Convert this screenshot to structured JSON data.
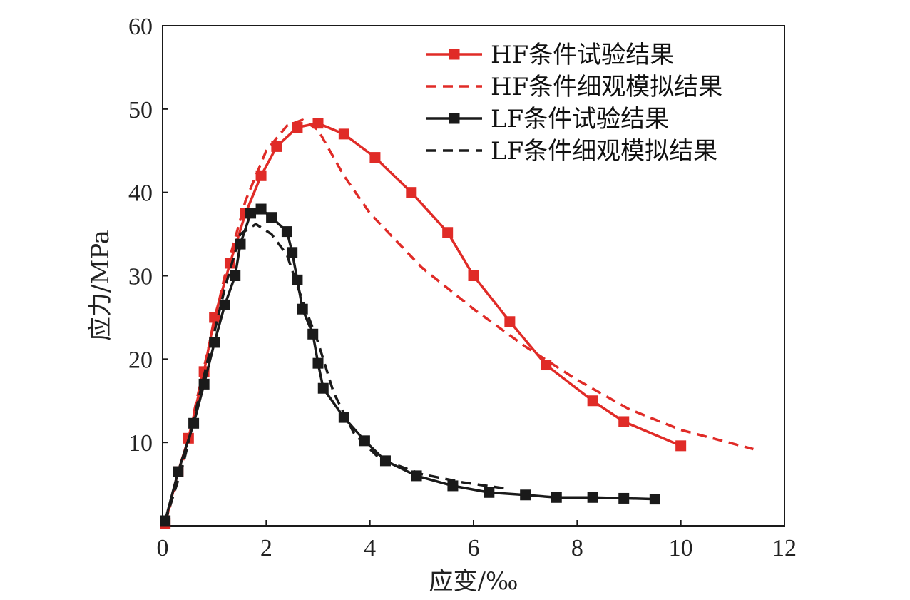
{
  "chart_data": {
    "type": "line",
    "xlabel": "应变/‰",
    "ylabel": "应力/MPa",
    "xlim": [
      0,
      12
    ],
    "ylim": [
      0,
      60
    ],
    "xticks": [
      0,
      2,
      4,
      6,
      8,
      10,
      12
    ],
    "yticks": [
      10,
      20,
      30,
      40,
      50,
      60
    ],
    "grid": false,
    "legend_position": "top-right",
    "series": [
      {
        "name": "HF条件试验结果",
        "color": "#e02b27",
        "style": "solid-square",
        "x": [
          0.05,
          0.3,
          0.5,
          0.8,
          1.0,
          1.3,
          1.6,
          1.9,
          2.2,
          2.6,
          3.0,
          3.5,
          4.1,
          4.8,
          5.5,
          6.0,
          6.7,
          7.4,
          8.3,
          8.9,
          10.0
        ],
        "y": [
          0.3,
          6.5,
          10.5,
          18.5,
          25.0,
          31.5,
          37.5,
          42.0,
          45.5,
          47.8,
          48.3,
          47.0,
          44.2,
          40.0,
          35.2,
          30.0,
          24.5,
          19.3,
          15.0,
          12.5,
          9.6
        ]
      },
      {
        "name": "HF条件细观模拟结果",
        "color": "#e02b27",
        "style": "dashed",
        "x": [
          0.05,
          0.4,
          0.8,
          1.2,
          1.6,
          2.0,
          2.4,
          2.7,
          3.0,
          3.5,
          4.0,
          5.0,
          6.0,
          7.0,
          8.0,
          9.0,
          10.0,
          11.4
        ],
        "y": [
          0.3,
          8.0,
          19.0,
          30.0,
          39.0,
          45.0,
          48.0,
          48.7,
          47.5,
          42.0,
          37.5,
          31.0,
          26.0,
          21.5,
          17.5,
          14.0,
          11.5,
          9.2
        ]
      },
      {
        "name": "LF条件试验结果",
        "color": "#1a1a1a",
        "style": "solid-square",
        "x": [
          0.05,
          0.3,
          0.6,
          0.8,
          1.0,
          1.2,
          1.4,
          1.5,
          1.7,
          1.9,
          2.1,
          2.4,
          2.5,
          2.6,
          2.7,
          2.9,
          3.0,
          3.1,
          3.5,
          3.9,
          4.3,
          4.9,
          5.6,
          6.3,
          7.0,
          7.6,
          8.3,
          8.9,
          9.5
        ],
        "y": [
          0.6,
          6.5,
          12.3,
          17.0,
          22.0,
          26.5,
          30.0,
          33.8,
          37.5,
          38.0,
          37.0,
          35.3,
          32.8,
          29.5,
          26.0,
          23.0,
          19.5,
          16.5,
          13.0,
          10.2,
          7.8,
          6.0,
          4.8,
          4.0,
          3.7,
          3.4,
          3.4,
          3.3,
          3.2
        ]
      },
      {
        "name": "LF条件细观模拟结果",
        "color": "#1a1a1a",
        "style": "dashed",
        "x": [
          0.05,
          0.4,
          0.8,
          1.2,
          1.5,
          1.8,
          2.1,
          2.4,
          2.7,
          3.0,
          3.3,
          3.7,
          4.2,
          5.0,
          5.8,
          6.7
        ],
        "y": [
          0.5,
          7.5,
          18.0,
          28.5,
          35.0,
          36.2,
          35.0,
          32.5,
          27.0,
          22.0,
          16.0,
          11.0,
          8.0,
          6.2,
          5.2,
          4.4
        ]
      }
    ]
  }
}
